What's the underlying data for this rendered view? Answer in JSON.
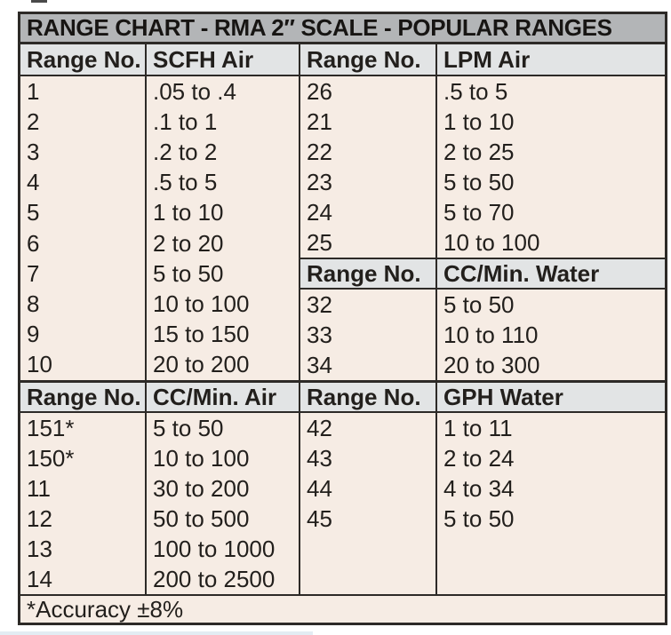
{
  "title": "RANGE CHART - RMA 2″ SCALE - POPULAR RANGES",
  "footnote": "*Accuracy ±8%",
  "colors": {
    "title_bar_bg": "#b3b5b7",
    "header_bg": "#e2e4e5",
    "cell_bg": "#f6ece4",
    "border": "#2d2a27",
    "text": "#221f1c"
  },
  "sections": [
    {
      "left": {
        "header": [
          "Range No.",
          "SCFH Air"
        ],
        "rows": [
          [
            "1",
            ".05 to .4"
          ],
          [
            "2",
            ".1 to 1"
          ],
          [
            "3",
            ".2 to 2"
          ],
          [
            "4",
            ".5 to 5"
          ],
          [
            "5",
            "1 to 10"
          ],
          [
            "6",
            "2 to 20"
          ],
          [
            "7",
            "5 to 50"
          ],
          [
            "8",
            "10 to 100"
          ],
          [
            "9",
            "15 to 150"
          ],
          [
            "10",
            "20 to 200"
          ]
        ]
      },
      "right": {
        "header": [
          "Range No.",
          "LPM Air"
        ],
        "rows": [
          [
            "26",
            ".5 to 5"
          ],
          [
            "21",
            "1 to 10"
          ],
          [
            "22",
            "2 to 25"
          ],
          [
            "23",
            "5 to 50"
          ],
          [
            "24",
            "5 to 70"
          ],
          [
            "25",
            "10 to 100"
          ]
        ],
        "subheader": [
          "Range No.",
          "CC/Min. Water"
        ],
        "subrows": [
          [
            "32",
            "5 to 50"
          ],
          [
            "33",
            "10 to 110"
          ],
          [
            "34",
            "20 to 300"
          ]
        ]
      }
    },
    {
      "left": {
        "header": [
          "Range No.",
          "CC/Min. Air"
        ],
        "rows": [
          [
            "151*",
            "5 to 50"
          ],
          [
            "150*",
            "10 to 100"
          ],
          [
            "11",
            "30 to 200"
          ],
          [
            "12",
            "50 to 500"
          ],
          [
            "13",
            "100 to 1000"
          ],
          [
            "14",
            "200 to 2500"
          ]
        ]
      },
      "right": {
        "header": [
          "Range No.",
          "GPH Water"
        ],
        "rows": [
          [
            "42",
            "1 to 11"
          ],
          [
            "43",
            "2 to 24"
          ],
          [
            "44",
            "4 to 34"
          ],
          [
            "45",
            "5 to 50"
          ]
        ]
      }
    }
  ]
}
